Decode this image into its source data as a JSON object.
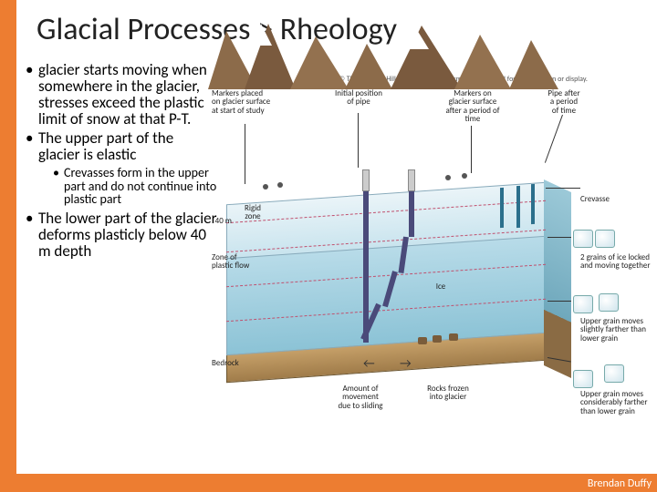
{
  "title": "Glacial Processes > Rheology",
  "bullets": {
    "b1": "glacier starts moving when somewhere in the glacier, stresses exceed the plastic limit of snow at that P-T.",
    "b2": "The upper part of the glacier is elastic",
    "b2s1": "Crevasses form in the upper part and do not continue into plastic part",
    "b3": "The lower part of the glacier deforms plasticly below 40 m depth"
  },
  "author": "Brendan Duffy",
  "diagram": {
    "copyright": "Copyright © The McGraw-Hill Companies, Inc. Permission required for reproduction or display.",
    "labels": {
      "markers": "Markers placed\non glacier surface\nat start of study",
      "initial": "Initial position\nof pipe",
      "markers_after": "Markers on\nglacier surface\nafter a period of\ntime",
      "pipe_after": "Pipe after\na period\nof time",
      "crevasse": "Crevasse",
      "rigid": "Rigid\nzone",
      "plastic_zone": "Zone of\nplastic flow",
      "ice": "Ice",
      "bedrock": "Bedrock",
      "amount": "Amount of\nmovement\ndue to sliding",
      "rocks_frozen": "Rocks frozen\ninto glacier",
      "depth40": "40 m",
      "grains_locked": "2 grains of ice locked\nand moving together",
      "upper_slight": "Upper grain moves\nslightly farther than\nlower grain",
      "upper_consid": "Upper grain moves\nconsiderably farther\nthan lower grain"
    },
    "colors": {
      "accent": "#ed7d31",
      "ice_light": "#eaf4f8",
      "ice_mid": "#b9dce9",
      "ice_deep": "#8cc3d6",
      "bedrock": "#a07c4a",
      "dash": "#c0506e",
      "pipe": "#4a4a7a",
      "mountain": "#8c6b4a",
      "snow": "#ffffff"
    }
  }
}
